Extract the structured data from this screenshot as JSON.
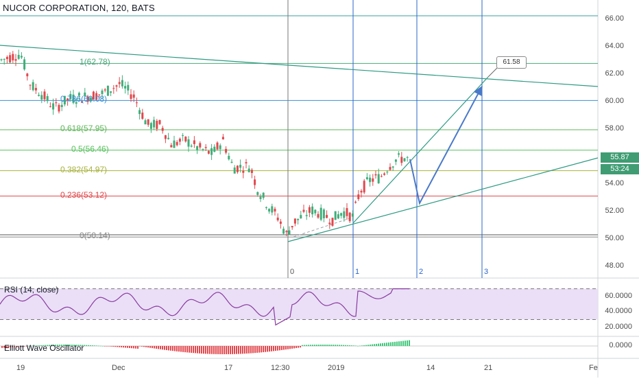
{
  "header": {
    "symbol_title": "NUCOR CORPORATION, 120, BATS"
  },
  "price_axis": {
    "ticks": [
      "66.00",
      "64.00",
      "62.00",
      "60.00",
      "58.00",
      "56.00",
      "54.00",
      "52.00",
      "50.00",
      "48.00"
    ],
    "last_price": "55.87",
    "countdown": "53:24",
    "last_price_color": "#3f9c73",
    "countdown_color": "#3f9c73"
  },
  "time_axis": {
    "ticks": [
      "19",
      "Dec",
      "17",
      "12:30",
      "2019",
      "14",
      "21",
      "Fe"
    ]
  },
  "fibonacci": {
    "levels": [
      {
        "label": "1(62.78)",
        "price": 62.78,
        "color": "#4aa87a"
      },
      {
        "label": "0.786(60.08)",
        "price": 60.08,
        "color": "#3a8fd6"
      },
      {
        "label": "0.618(57.95)",
        "price": 57.95,
        "color": "#5fb65a"
      },
      {
        "label": "0.5(56.46)",
        "price": 56.46,
        "color": "#56c15c"
      },
      {
        "label": "0.382(54.97)",
        "price": 54.97,
        "color": "#a8b23c"
      },
      {
        "label": "0.236(53.12)",
        "price": 53.12,
        "color": "#e0474a"
      },
      {
        "label": "0(50.14)",
        "price": 50.14,
        "color": "#888888"
      }
    ]
  },
  "projection": {
    "target_label": "61.58"
  },
  "wave_counts": [
    "0",
    "1",
    "2",
    "3"
  ],
  "rsi": {
    "label": "RSI (14, close)",
    "ticks": [
      "60.0000",
      "40.0000",
      "20.0000"
    ]
  },
  "ewo": {
    "label": "Elliott Wave Oscillator",
    "ticks": [
      "0.0000"
    ]
  },
  "colors": {
    "up": "#3fae7a",
    "down": "#e2474d",
    "rsi_line": "#8a3a9e",
    "rsi_band": "#eadff7"
  }
}
